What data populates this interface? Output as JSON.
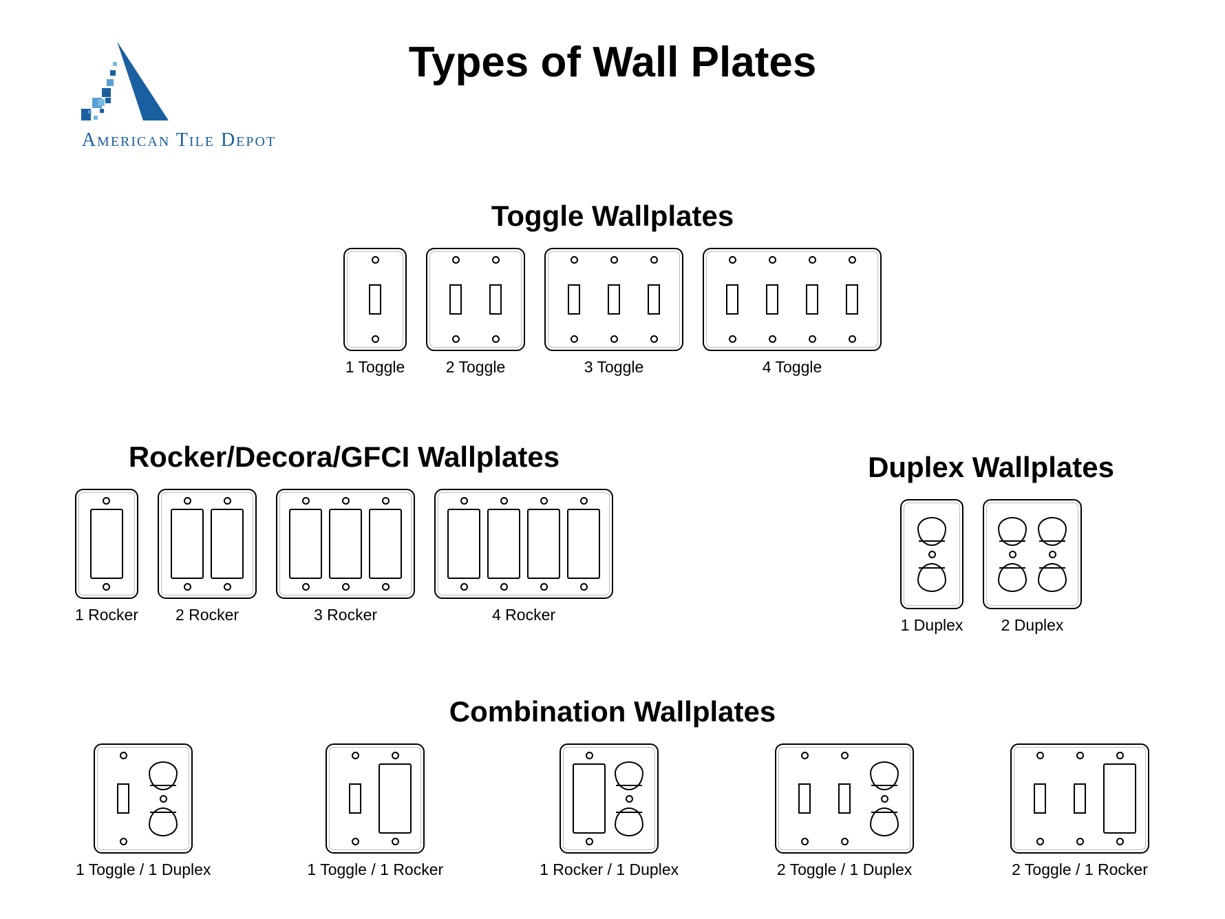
{
  "brand": {
    "name": "American Tile Depot",
    "color": "#1a5fa0"
  },
  "title": "Types of Wall Plates",
  "background_color": "#ffffff",
  "text_color": "#000000",
  "plate": {
    "border_color": "#000000",
    "border_width": 2.5,
    "border_radius": 12,
    "fill": "#ffffff",
    "gang_width": 58,
    "height_std": 150,
    "height_lg": 160
  },
  "sections": {
    "toggle": {
      "title": "Toggle Wallplates",
      "items": [
        {
          "gangs": 1,
          "caption": "1 Toggle",
          "layout": [
            "toggle"
          ]
        },
        {
          "gangs": 2,
          "caption": "2 Toggle",
          "layout": [
            "toggle",
            "toggle"
          ]
        },
        {
          "gangs": 3,
          "caption": "3 Toggle",
          "layout": [
            "toggle",
            "toggle",
            "toggle"
          ]
        },
        {
          "gangs": 4,
          "caption": "4 Toggle",
          "layout": [
            "toggle",
            "toggle",
            "toggle",
            "toggle"
          ]
        }
      ]
    },
    "rocker": {
      "title": "Rocker/Decora/GFCI Wallplates",
      "items": [
        {
          "gangs": 1,
          "caption": "1 Rocker",
          "layout": [
            "rocker"
          ]
        },
        {
          "gangs": 2,
          "caption": "2 Rocker",
          "layout": [
            "rocker",
            "rocker"
          ]
        },
        {
          "gangs": 3,
          "caption": "3 Rocker",
          "layout": [
            "rocker",
            "rocker",
            "rocker"
          ]
        },
        {
          "gangs": 4,
          "caption": "4 Rocker",
          "layout": [
            "rocker",
            "rocker",
            "rocker",
            "rocker"
          ]
        }
      ]
    },
    "duplex": {
      "title": "Duplex Wallplates",
      "items": [
        {
          "gangs": 1,
          "caption": "1 Duplex",
          "layout": [
            "duplex"
          ]
        },
        {
          "gangs": 2,
          "caption": "2 Duplex",
          "layout": [
            "duplex",
            "duplex"
          ]
        }
      ]
    },
    "combination": {
      "title": "Combination Wallplates",
      "items": [
        {
          "gangs": 2,
          "caption": "1 Toggle / 1 Duplex",
          "layout": [
            "toggle",
            "duplex"
          ]
        },
        {
          "gangs": 2,
          "caption": "1 Toggle / 1 Rocker",
          "layout": [
            "toggle",
            "rocker"
          ]
        },
        {
          "gangs": 2,
          "caption": "1 Rocker / 1 Duplex",
          "layout": [
            "rocker",
            "duplex"
          ]
        },
        {
          "gangs": 3,
          "caption": "2 Toggle / 1 Duplex",
          "layout": [
            "toggle",
            "toggle",
            "duplex"
          ]
        },
        {
          "gangs": 3,
          "caption": "2 Toggle / 1 Rocker",
          "layout": [
            "toggle",
            "toggle",
            "rocker"
          ]
        }
      ]
    }
  }
}
